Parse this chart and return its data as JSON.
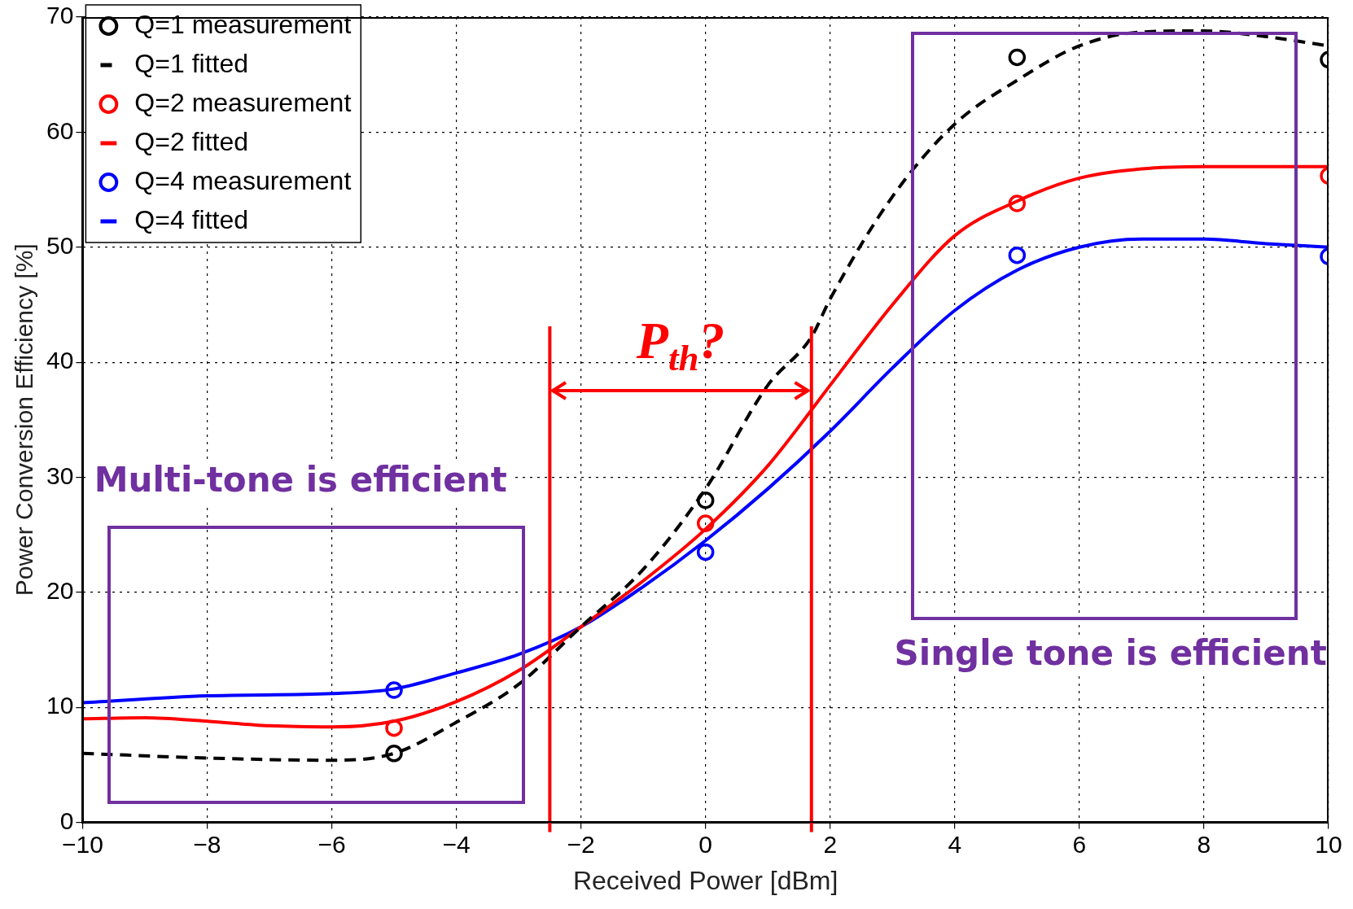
{
  "chart_data": {
    "type": "line",
    "xlabel": "Received Power [dBm]",
    "ylabel": "Power Conversion Efficiency [%]",
    "xlim": [
      -10,
      10
    ],
    "xticks": [
      -10,
      -8,
      -6,
      -4,
      -2,
      0,
      2,
      4,
      6,
      8,
      10
    ],
    "ylim": [
      0,
      70
    ],
    "yticks": [
      0,
      10,
      20,
      30,
      40,
      50,
      60,
      70
    ],
    "grid": true,
    "legend": "top left",
    "series": [
      {
        "name": "Q=1 measurement",
        "type": "scatter",
        "marker": "circle",
        "color": "#000000",
        "x": [
          -5,
          0,
          5,
          10
        ],
        "values": [
          6,
          28,
          66.5,
          66.3
        ]
      },
      {
        "name": "Q=1 fitted",
        "marker": "none",
        "line_style": "dashed",
        "color": "#000000",
        "x": [
          -10,
          -8,
          -6,
          -5,
          -4,
          -3,
          -2,
          -1,
          0,
          1,
          1.7,
          2,
          3,
          4,
          5,
          6,
          7,
          8,
          9,
          10
        ],
        "values": [
          6,
          5.6,
          5.4,
          6,
          8.7,
          12,
          17,
          22,
          29,
          38,
          42.2,
          45.5,
          54.4,
          60.7,
          64.5,
          67.5,
          68.7,
          68.8,
          68.3,
          67.5
        ]
      },
      {
        "name": "Q=2 measurement",
        "type": "scatter",
        "marker": "circle",
        "color": "#ff0000",
        "x": [
          -5,
          0,
          5,
          10
        ],
        "values": [
          8.2,
          26,
          53.8,
          56.2
        ]
      },
      {
        "name": "Q=2 fitted",
        "marker": "none",
        "line_style": "solid",
        "color": "#ff0000",
        "x": [
          -10,
          -9,
          -8,
          -7,
          -6,
          -5,
          -4,
          -3,
          -2,
          -1,
          0,
          1,
          2,
          3,
          4,
          5,
          6,
          7,
          8,
          9,
          10
        ],
        "values": [
          9,
          9.1,
          8.8,
          8.4,
          8.3,
          8.8,
          10.5,
          13.2,
          17,
          21,
          25.5,
          31,
          38,
          45,
          51,
          54,
          56,
          56.8,
          57,
          57,
          57
        ]
      },
      {
        "name": "Q=4 measurement",
        "type": "scatter",
        "marker": "circle",
        "color": "#0000ff",
        "x": [
          -5,
          0,
          5,
          10
        ],
        "values": [
          11.5,
          23.5,
          49.3,
          49.2
        ]
      },
      {
        "name": "Q=4 fitted",
        "marker": "none",
        "line_style": "solid",
        "color": "#0000ff",
        "x": [
          -10,
          -8,
          -6,
          -5,
          -4,
          -3,
          -2,
          -1,
          0,
          1,
          2,
          3,
          4,
          5,
          6,
          7,
          8,
          9,
          10
        ],
        "values": [
          10.4,
          11,
          11.2,
          11.6,
          13,
          14.6,
          17,
          20.5,
          24.5,
          29,
          34,
          39.5,
          44.5,
          48,
          50,
          50.7,
          50.7,
          50.3,
          50
        ]
      }
    ],
    "ref_lines": [
      {
        "axis": "x",
        "value": -2.5,
        "color": "#ff0000"
      },
      {
        "axis": "x",
        "value": 1.7,
        "color": "#ff0000"
      }
    ],
    "annotations": [
      "P$_{th}$?",
      "Multi-tone is efficient",
      "Single tone is efficient"
    ]
  }
}
